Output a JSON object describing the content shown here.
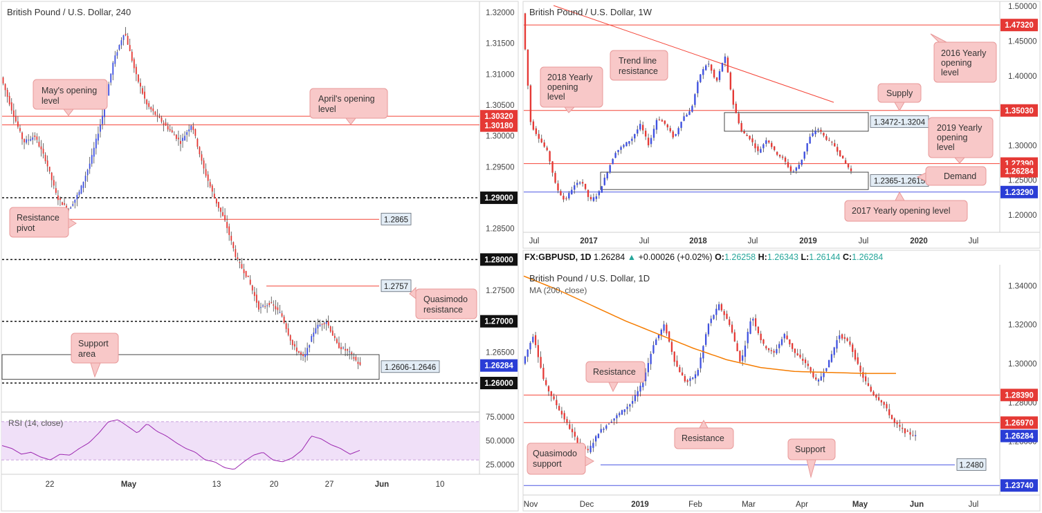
{
  "colors": {
    "bull": "#3f51e0",
    "bear": "#e53935",
    "red_line": "#f44336",
    "blue_line": "#4a56e2",
    "ma": "#f57c00",
    "rsi": "#9c27b0",
    "rsi_band": "#f0e0f8",
    "callout_fill": "#f8c8c8",
    "callout_stroke": "#e89999",
    "tag_red": "#e53935",
    "tag_blue": "#2a3dd6",
    "tag_black": "#111111"
  },
  "chart_data": [
    {
      "id": "h4",
      "type": "candlestick",
      "title": "British Pound / U.S. Dollar, 240",
      "ylim": [
        1.2553,
        1.3218
      ],
      "y_ticks": [
        "1.32000",
        "1.31500",
        "1.31000",
        "1.30500",
        "1.30000",
        "1.29500",
        "1.29000",
        "1.28500",
        "1.28000",
        "1.27500",
        "1.27000",
        "1.26500",
        "1.26000"
      ],
      "x_ticks": [
        "22",
        "May",
        "13",
        "20",
        "27",
        "Jun",
        "10"
      ],
      "last_price": 1.26284,
      "levels": [
        {
          "label": "May's opening level",
          "value": 1.3032,
          "tag": "1.30320",
          "style": "red"
        },
        {
          "label": "April's opening level",
          "value": 1.3018,
          "tag": "1.30180",
          "style": "red"
        },
        {
          "label": "1.29000",
          "value": 1.29,
          "tag": "1.29000",
          "style": "dotted"
        },
        {
          "label": "1.28000",
          "value": 1.28,
          "tag": "1.28000",
          "style": "dotted"
        },
        {
          "label": "1.27000",
          "value": 1.27,
          "tag": "1.27000",
          "style": "dotted"
        },
        {
          "label": "1.26000",
          "value": 1.26,
          "tag": "1.26000",
          "style": "dotted"
        },
        {
          "label": "Resistance pivot",
          "value": 1.2865,
          "tag": "1.2865",
          "style": "red-box"
        },
        {
          "label": "Quasimodo resistance",
          "value": 1.2757,
          "tag": "1.2757",
          "style": "red-box"
        }
      ],
      "zone": {
        "label": "Support area",
        "from": 1.2606,
        "to": 1.2646,
        "tag": "1.2606-1.2646"
      },
      "price_path": [
        1.3095,
        1.304,
        1.299,
        1.3,
        1.296,
        1.29,
        1.288,
        1.291,
        1.296,
        1.303,
        1.312,
        1.317,
        1.31,
        1.305,
        1.303,
        1.301,
        1.299,
        1.302,
        1.295,
        1.29,
        1.286,
        1.28,
        1.277,
        1.272,
        1.273,
        1.271,
        1.266,
        1.264,
        1.269,
        1.27,
        1.266,
        1.265,
        1.2628
      ]
    },
    {
      "id": "rsi",
      "type": "line",
      "title": "RSI (14, close)",
      "ylim": [
        15,
        80
      ],
      "y_ticks": [
        "75.0000",
        "50.0000",
        "25.0000"
      ],
      "band": [
        30,
        70
      ],
      "values": [
        45,
        42,
        36,
        38,
        33,
        30,
        36,
        35,
        42,
        48,
        58,
        70,
        72,
        65,
        58,
        68,
        60,
        55,
        48,
        42,
        38,
        30,
        28,
        22,
        20,
        28,
        35,
        38,
        30,
        28,
        32,
        40,
        55,
        52,
        46,
        42,
        36,
        40
      ]
    },
    {
      "id": "weekly",
      "type": "candlestick",
      "title": "British Pound / U.S. Dollar, 1W",
      "ylim": [
        1.175,
        1.5072
      ],
      "y_ticks": [
        "1.50000",
        "1.45000",
        "1.40000",
        "1.35000",
        "1.30000",
        "1.25000",
        "1.20000"
      ],
      "x_ticks": [
        "Jul",
        "2017",
        "Jul",
        "2018",
        "Jul",
        "2019",
        "Jul",
        "2020",
        "Jul"
      ],
      "levels": [
        {
          "label": "2016 Yearly opening level",
          "value": 1.4732,
          "tag": "1.47320"
        },
        {
          "label": "2018 Yearly opening level",
          "value": 1.3503,
          "tag": "1.35030"
        },
        {
          "label": "2019 Yearly opening level",
          "value": 1.2739,
          "tag": "1.27390"
        },
        {
          "label": "2017 Yearly opening level",
          "value": 1.2329,
          "tag": "1.23290"
        }
      ],
      "last_price": 1.26284,
      "zones": [
        {
          "label": "Supply",
          "from": 1.3204,
          "to": 1.3472,
          "tag": "1.3472-1.3204"
        },
        {
          "label": "Demand",
          "from": 1.2365,
          "to": 1.2615,
          "tag": "1.2365-1.2615"
        }
      ],
      "trendline_label": "Trend line resistance",
      "price_path": [
        1.49,
        1.33,
        1.31,
        1.29,
        1.24,
        1.22,
        1.24,
        1.25,
        1.22,
        1.23,
        1.26,
        1.29,
        1.3,
        1.31,
        1.33,
        1.3,
        1.34,
        1.33,
        1.31,
        1.34,
        1.35,
        1.4,
        1.42,
        1.39,
        1.43,
        1.36,
        1.32,
        1.31,
        1.29,
        1.31,
        1.29,
        1.28,
        1.26,
        1.275,
        1.31,
        1.325,
        1.31,
        1.3,
        1.28,
        1.2628
      ]
    },
    {
      "id": "daily",
      "type": "candlestick",
      "header": {
        "symbol": "FX:GBPUSD",
        "tf": "1D",
        "last": "1.26284",
        "chg": "+0.00026 (+0.02%)",
        "o": "1.26258",
        "h": "1.26343",
        "l": "1.26144",
        "c": "1.26284"
      },
      "title": "British Pound / U.S. Dollar, 1D",
      "ma_label": "MA (200, close)",
      "ylim": [
        1.2325,
        1.3508
      ],
      "y_ticks": [
        "1.34000",
        "1.32000",
        "1.30000",
        "1.28000",
        "1.26000"
      ],
      "x_ticks": [
        "Nov",
        "Dec",
        "2019",
        "Feb",
        "Mar",
        "Apr",
        "May",
        "Jun",
        "Jul"
      ],
      "levels": [
        {
          "label": "Resistance",
          "value": 1.2839,
          "tag": "1.28390",
          "style": "red"
        },
        {
          "label": "Resistance",
          "value": 1.2697,
          "tag": "1.26970",
          "style": "red"
        },
        {
          "label": "Quasimodo support",
          "value": 1.248,
          "tag": "1.2480",
          "style": "blue-box"
        },
        {
          "label": "Support",
          "value": 1.2374,
          "tag": "1.23740",
          "style": "blue"
        }
      ],
      "last_price": 1.26284,
      "ma_path": [
        1.345,
        1.338,
        1.33,
        1.322,
        1.315,
        1.308,
        1.302,
        1.298,
        1.296,
        1.2955,
        1.295,
        1.295
      ],
      "price_path": [
        1.3,
        1.315,
        1.29,
        1.28,
        1.27,
        1.26,
        1.255,
        1.265,
        1.27,
        1.275,
        1.28,
        1.29,
        1.31,
        1.32,
        1.3,
        1.29,
        1.295,
        1.32,
        1.33,
        1.32,
        1.3,
        1.325,
        1.31,
        1.305,
        1.315,
        1.305,
        1.3,
        1.29,
        1.3,
        1.315,
        1.31,
        1.295,
        1.285,
        1.28,
        1.27,
        1.265,
        1.2628
      ]
    }
  ],
  "callouts": {
    "mays": "May's opening level",
    "aprils": "April's opening level",
    "res_pivot": "Resistance pivot",
    "qm_res": "Quasimodo resistance",
    "support_area": "Support area",
    "trend": "Trend line resistance",
    "y2018": "2018 Yearly opening level",
    "y2016": "2016 Yearly opening level",
    "supply": "Supply",
    "y2019": "2019 Yearly opening level",
    "demand": "Demand",
    "y2017": "2017 Yearly opening level",
    "d_res1": "Resistance",
    "d_res2": "Resistance",
    "qm_sup": "Quasimodo support",
    "support": "Support"
  }
}
